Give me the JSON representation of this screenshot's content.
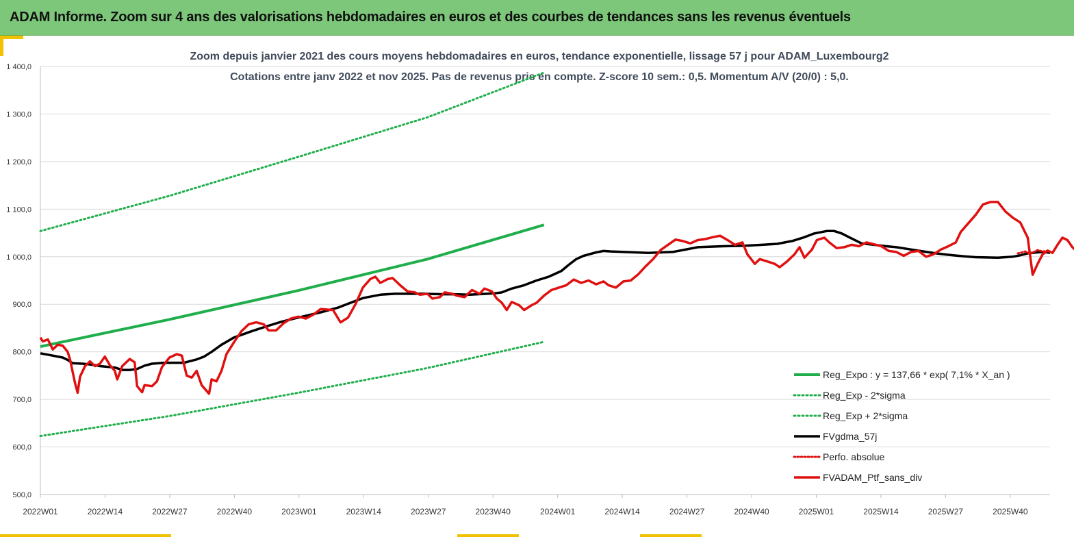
{
  "header": {
    "title": "ADAM Informe. Zoom sur 4 ans des valorisations hebdomadaires en euros et des courbes de tendances sans les revenus éventuels"
  },
  "chart_data": {
    "type": "line",
    "subtitle_line1": "Zoom depuis janvier 2021 des cours moyens hebdomadaires  en euros, tendance exponentielle, lissage 57 j pour ADAM_Luxembourg2",
    "subtitle_line2": "Cotations  entre janv 2022 et nov 2025. Pas de revenus pris en compte. Z-score 10 sem.: 0,5. Momentum A/V (20/0) : 5,0.",
    "ylim": [
      500,
      1400
    ],
    "y_ticks": [
      500,
      600,
      700,
      800,
      900,
      1000,
      1100,
      1200,
      1300,
      1400
    ],
    "y_tick_labels": [
      "500,0",
      "600,0",
      "700,0",
      "800,0",
      "900,0",
      "1 000,0",
      "1 100,0",
      "1 200,0",
      "1 300,0",
      "1 400,0"
    ],
    "x_index_range": [
      0,
      203
    ],
    "x_ticks": [
      0,
      13,
      26,
      39,
      52,
      65,
      78,
      91,
      104,
      117,
      130,
      143,
      156,
      169,
      182,
      195
    ],
    "x_tick_labels": [
      "2022W01",
      "2022W14",
      "2022W27",
      "2022W40",
      "2023W01",
      "2023W14",
      "2023W27",
      "2023W40",
      "2024W01",
      "2024W14",
      "2024W27",
      "2024W40",
      "2025W01",
      "2025W14",
      "2025W27",
      "2025W40"
    ],
    "grid": "horizontal",
    "legend_position": "bottom-right",
    "colors": {
      "reg_expo": "#1fae4b",
      "sigma": "#1fae4b",
      "fvgdma": "#000000",
      "perfo": "#e01010",
      "fvadam": "#e01010",
      "grid": "#d9d9d9",
      "banner": "#7dc77a",
      "accent": "#f2c200"
    },
    "series": [
      {
        "name": "Reg_Expo : y = 137,66 * exp( 7,1% *  X_an )",
        "style": "solid",
        "points": [
          [
            0,
            811
          ],
          [
            52,
            868
          ],
          [
            104,
            929
          ],
          [
            156,
            995
          ],
          [
            203,
            1067
          ]
        ]
      },
      {
        "name": "Reg_Exp - 2*sigma",
        "style": "dotted",
        "points": [
          [
            0,
            623
          ],
          [
            52,
            665
          ],
          [
            104,
            714
          ],
          [
            156,
            766
          ],
          [
            203,
            821
          ]
        ]
      },
      {
        "name": "Reg_Exp + 2*sigma",
        "style": "dotted",
        "points": [
          [
            0,
            1054
          ],
          [
            52,
            1128
          ],
          [
            104,
            1210
          ],
          [
            156,
            1293
          ],
          [
            203,
            1387
          ]
        ]
      },
      {
        "name": "FVgdma_57j",
        "style": "solid-black",
        "points": [
          [
            0,
            797
          ],
          [
            5,
            792
          ],
          [
            9,
            788
          ],
          [
            11,
            783
          ],
          [
            13,
            776
          ],
          [
            17,
            775
          ],
          [
            19,
            774
          ],
          [
            22,
            772
          ],
          [
            24,
            770
          ],
          [
            28,
            768
          ],
          [
            30,
            767
          ],
          [
            33,
            762
          ],
          [
            36,
            762
          ],
          [
            39,
            764
          ],
          [
            42,
            771
          ],
          [
            45,
            775
          ],
          [
            50,
            777
          ],
          [
            55,
            777
          ],
          [
            58,
            777
          ],
          [
            60,
            780
          ],
          [
            63,
            784
          ],
          [
            66,
            790
          ],
          [
            69,
            800
          ],
          [
            73,
            815
          ],
          [
            78,
            830
          ],
          [
            85,
            843
          ],
          [
            92,
            855
          ],
          [
            97,
            863
          ],
          [
            103,
            871
          ],
          [
            108,
            877
          ],
          [
            113,
            883
          ],
          [
            120,
            893
          ],
          [
            125,
            903
          ],
          [
            130,
            913
          ],
          [
            137,
            920
          ],
          [
            143,
            922
          ],
          [
            149,
            922
          ],
          [
            155,
            922
          ],
          [
            162,
            921
          ],
          [
            167,
            921
          ],
          [
            173,
            920
          ],
          [
            180,
            922
          ],
          [
            183,
            923
          ],
          [
            186,
            925
          ],
          [
            190,
            933
          ],
          [
            195,
            940
          ],
          [
            200,
            950
          ],
          [
            205,
            958
          ],
          [
            210,
            970
          ],
          [
            213,
            983
          ],
          [
            216,
            995
          ],
          [
            219,
            1002
          ],
          [
            224,
            1009
          ],
          [
            227,
            1012
          ],
          [
            230,
            1011
          ],
          [
            240,
            1009
          ],
          [
            245,
            1008
          ],
          [
            255,
            1010
          ],
          [
            260,
            1015
          ],
          [
            265,
            1020
          ],
          [
            275,
            1022
          ],
          [
            284,
            1023
          ],
          [
            291,
            1025
          ],
          [
            297,
            1027
          ],
          [
            303,
            1033
          ],
          [
            308,
            1041
          ],
          [
            312,
            1049
          ],
          [
            317,
            1054
          ],
          [
            320,
            1054
          ],
          [
            323,
            1049
          ],
          [
            326,
            1041
          ],
          [
            331,
            1028
          ],
          [
            336,
            1025
          ],
          [
            341,
            1022
          ],
          [
            345,
            1020
          ],
          [
            350,
            1016
          ],
          [
            356,
            1011
          ],
          [
            361,
            1007
          ],
          [
            366,
            1004
          ],
          [
            372,
            1001
          ],
          [
            377,
            999
          ],
          [
            386,
            998
          ],
          [
            392,
            1000
          ],
          [
            395,
            1003
          ],
          [
            398,
            1007
          ],
          [
            404,
            1010
          ],
          [
            407,
            1008
          ]
        ]
      },
      {
        "name": "Perfo. absolue",
        "style": "dotted-red",
        "points": [
          [
            394,
            1007
          ],
          [
            397,
            1011
          ],
          [
            399,
            1006
          ],
          [
            402,
            1014
          ],
          [
            404,
            1011
          ],
          [
            407,
            1012
          ]
        ]
      },
      {
        "name": "FVADAM_Ptf_sans_div",
        "style": "solid-red",
        "points": [
          [
            0,
            830
          ],
          [
            1,
            822
          ],
          [
            3,
            826
          ],
          [
            5,
            805
          ],
          [
            7,
            815
          ],
          [
            9,
            813
          ],
          [
            11,
            800
          ],
          [
            12,
            783
          ],
          [
            13,
            758
          ],
          [
            14,
            734
          ],
          [
            15,
            714
          ],
          [
            16,
            748
          ],
          [
            18,
            770
          ],
          [
            20,
            780
          ],
          [
            22,
            770
          ],
          [
            24,
            775
          ],
          [
            26,
            790
          ],
          [
            28,
            772
          ],
          [
            30,
            760
          ],
          [
            31,
            742
          ],
          [
            33,
            770
          ],
          [
            36,
            785
          ],
          [
            38,
            778
          ],
          [
            39,
            728
          ],
          [
            41,
            715
          ],
          [
            42,
            730
          ],
          [
            45,
            728
          ],
          [
            47,
            738
          ],
          [
            49,
            768
          ],
          [
            52,
            788
          ],
          [
            55,
            795
          ],
          [
            57,
            792
          ],
          [
            59,
            750
          ],
          [
            61,
            746
          ],
          [
            63,
            760
          ],
          [
            65,
            730
          ],
          [
            68,
            712
          ],
          [
            69,
            742
          ],
          [
            71,
            738
          ],
          [
            73,
            760
          ],
          [
            75,
            795
          ],
          [
            78,
            820
          ],
          [
            81,
            843
          ],
          [
            84,
            858
          ],
          [
            87,
            862
          ],
          [
            90,
            858
          ],
          [
            92,
            845
          ],
          [
            95,
            845
          ],
          [
            98,
            860
          ],
          [
            101,
            870
          ],
          [
            104,
            874
          ],
          [
            107,
            870
          ],
          [
            110,
            878
          ],
          [
            113,
            890
          ],
          [
            118,
            888
          ],
          [
            121,
            862
          ],
          [
            124,
            872
          ],
          [
            127,
            900
          ],
          [
            130,
            935
          ],
          [
            133,
            953
          ],
          [
            135,
            958
          ],
          [
            137,
            945
          ],
          [
            140,
            953
          ],
          [
            142,
            955
          ],
          [
            145,
            940
          ],
          [
            148,
            927
          ],
          [
            151,
            925
          ],
          [
            153,
            920
          ],
          [
            156,
            922
          ],
          [
            158,
            912
          ],
          [
            161,
            915
          ],
          [
            163,
            925
          ],
          [
            166,
            922
          ],
          [
            168,
            918
          ],
          [
            171,
            915
          ],
          [
            174,
            930
          ],
          [
            177,
            922
          ],
          [
            179,
            933
          ],
          [
            182,
            927
          ],
          [
            184,
            912
          ],
          [
            186,
            903
          ],
          [
            188,
            888
          ],
          [
            190,
            905
          ],
          [
            193,
            898
          ],
          [
            195,
            888
          ],
          [
            198,
            898
          ],
          [
            200,
            903
          ],
          [
            203,
            918
          ],
          [
            206,
            930
          ],
          [
            209,
            935
          ],
          [
            212,
            940
          ],
          [
            215,
            952
          ],
          [
            218,
            945
          ],
          [
            221,
            950
          ],
          [
            224,
            942
          ],
          [
            227,
            948
          ],
          [
            229,
            940
          ],
          [
            232,
            935
          ],
          [
            235,
            948
          ],
          [
            238,
            950
          ],
          [
            241,
            963
          ],
          [
            244,
            980
          ],
          [
            247,
            995
          ],
          [
            250,
            1014
          ],
          [
            253,
            1025
          ],
          [
            256,
            1036
          ],
          [
            259,
            1033
          ],
          [
            262,
            1028
          ],
          [
            265,
            1035
          ],
          [
            268,
            1037
          ],
          [
            271,
            1041
          ],
          [
            274,
            1044
          ],
          [
            277,
            1035
          ],
          [
            280,
            1025
          ],
          [
            283,
            1030
          ],
          [
            285,
            1005
          ],
          [
            288,
            985
          ],
          [
            290,
            995
          ],
          [
            293,
            990
          ],
          [
            296,
            985
          ],
          [
            298,
            978
          ],
          [
            301,
            990
          ],
          [
            304,
            1005
          ],
          [
            306,
            1020
          ],
          [
            308,
            998
          ],
          [
            311,
            1015
          ],
          [
            313,
            1035
          ],
          [
            316,
            1040
          ],
          [
            318,
            1030
          ],
          [
            321,
            1018
          ],
          [
            324,
            1020
          ],
          [
            327,
            1025
          ],
          [
            330,
            1022
          ],
          [
            333,
            1030
          ],
          [
            336,
            1026
          ],
          [
            339,
            1022
          ],
          [
            342,
            1012
          ],
          [
            345,
            1010
          ],
          [
            348,
            1002
          ],
          [
            351,
            1010
          ],
          [
            354,
            1012
          ],
          [
            357,
            1000
          ],
          [
            360,
            1005
          ],
          [
            363,
            1015
          ],
          [
            366,
            1022
          ],
          [
            369,
            1030
          ],
          [
            371,
            1052
          ],
          [
            374,
            1070
          ],
          [
            377,
            1088
          ],
          [
            380,
            1110
          ],
          [
            383,
            1115
          ],
          [
            386,
            1115
          ],
          [
            389,
            1095
          ],
          [
            392,
            1082
          ],
          [
            395,
            1072
          ],
          [
            398,
            1040
          ],
          [
            400,
            962
          ],
          [
            402,
            985
          ],
          [
            404,
            1005
          ],
          [
            406,
            1013
          ],
          [
            408,
            1008
          ],
          [
            410,
            1025
          ],
          [
            412,
            1040
          ],
          [
            414,
            1035
          ],
          [
            416,
            1020
          ],
          [
            418,
            1010
          ],
          [
            420,
            1005
          ],
          [
            422,
            995
          ],
          [
            424,
            1000
          ],
          [
            426,
            1010
          ],
          [
            428,
            1005
          ],
          [
            430,
            1008
          ],
          [
            432,
            1005
          ],
          [
            434,
            977
          ],
          [
            436,
            980
          ],
          [
            438,
            1005
          ],
          [
            440,
            995
          ],
          [
            442,
            968
          ],
          [
            444,
            972
          ],
          [
            446,
            975
          ],
          [
            448,
            973
          ],
          [
            450,
            990
          ],
          [
            452,
            990
          ],
          [
            454,
            993
          ],
          [
            456,
            1020
          ],
          [
            458,
            1022
          ]
        ]
      }
    ]
  }
}
